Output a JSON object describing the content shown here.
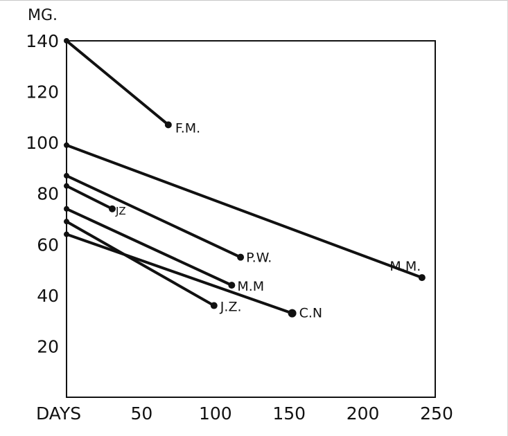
{
  "chart_data": {
    "type": "line",
    "ylabel": "MG.",
    "xlabel": "DAYS",
    "xlim": [
      0,
      250
    ],
    "ylim": [
      0,
      140
    ],
    "x_ticks": [
      {
        "value": 50,
        "label": "50"
      },
      {
        "value": 100,
        "label": "100"
      },
      {
        "value": 150,
        "label": "150"
      },
      {
        "value": 200,
        "label": "200"
      },
      {
        "value": 250,
        "label": "250"
      }
    ],
    "y_ticks": [
      {
        "value": 140,
        "label": "140"
      },
      {
        "value": 120,
        "label": "120"
      },
      {
        "value": 100,
        "label": "100"
      },
      {
        "value": 80,
        "label": "80"
      },
      {
        "value": 60,
        "label": "60"
      },
      {
        "value": 40,
        "label": "40"
      },
      {
        "value": 20,
        "label": "20"
      }
    ],
    "series": [
      {
        "name": "F.M.",
        "points": [
          [
            0,
            140
          ],
          [
            69,
            107
          ]
        ]
      },
      {
        "name": "M.M.",
        "points": [
          [
            0,
            99
          ],
          [
            241,
            47
          ]
        ]
      },
      {
        "name": "P.W.",
        "points": [
          [
            0,
            87
          ],
          [
            118,
            55
          ]
        ]
      },
      {
        "name": "JZ",
        "points": [
          [
            0,
            83
          ],
          [
            31,
            74
          ]
        ]
      },
      {
        "name": "M.M",
        "points": [
          [
            0,
            74
          ],
          [
            112,
            44
          ]
        ]
      },
      {
        "name": "J.Z.",
        "points": [
          [
            0,
            69
          ],
          [
            100,
            36
          ]
        ]
      },
      {
        "name": "C.N",
        "points": [
          [
            0,
            64
          ],
          [
            153,
            33
          ]
        ]
      }
    ]
  }
}
